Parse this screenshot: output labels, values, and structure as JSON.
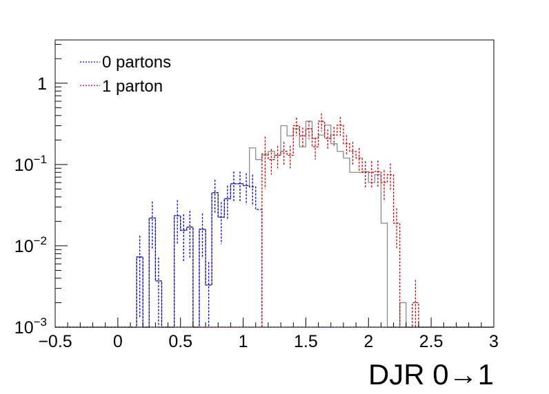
{
  "chart_data": {
    "type": "histogram",
    "xlabel": "DJR 0→1",
    "ylabel": "",
    "log_y": true,
    "xlim": [
      -0.5,
      3.0
    ],
    "ylim": [
      0.001,
      3.4
    ],
    "x_ticks": [
      {
        "value": -0.5,
        "label": "−0.5"
      },
      {
        "value": 0,
        "label": "0"
      },
      {
        "value": 0.5,
        "label": "0.5"
      },
      {
        "value": 1,
        "label": "1"
      },
      {
        "value": 1.5,
        "label": "1.5"
      },
      {
        "value": 2,
        "label": "2"
      },
      {
        "value": 2.5,
        "label": "2.5"
      },
      {
        "value": 3,
        "label": "3"
      }
    ],
    "y_ticks": [
      {
        "value": 0.001,
        "base": "10",
        "exp": "−3"
      },
      {
        "value": 0.01,
        "base": "10",
        "exp": "−2"
      },
      {
        "value": 0.1,
        "base": "10",
        "exp": "−1"
      },
      {
        "value": 1,
        "base": "1",
        "exp": ""
      }
    ],
    "bin_edges": [
      -0.5,
      -0.45,
      -0.4,
      -0.35,
      -0.3,
      -0.25,
      -0.2,
      -0.15,
      -0.1,
      -0.05,
      0.0,
      0.05,
      0.1,
      0.15,
      0.2,
      0.25,
      0.3,
      0.35,
      0.4,
      0.45,
      0.5,
      0.55,
      0.6,
      0.65,
      0.7,
      0.75,
      0.8,
      0.85,
      0.9,
      0.95,
      1.0,
      1.05,
      1.1,
      1.15,
      1.2,
      1.25,
      1.3,
      1.35,
      1.4,
      1.45,
      1.5,
      1.55,
      1.6,
      1.65,
      1.7,
      1.75,
      1.8,
      1.85,
      1.9,
      1.95,
      2.0,
      2.05,
      2.1,
      2.15,
      2.2,
      2.25,
      2.3,
      2.35,
      2.4,
      2.45,
      2.5,
      2.55,
      2.6,
      2.65,
      2.7,
      2.75,
      2.8,
      2.85,
      2.9,
      2.95,
      3.0
    ],
    "series": [
      {
        "name": "0 partons",
        "color": "#0000cc",
        "values": [
          0,
          0,
          0,
          0,
          0,
          0,
          0,
          0,
          0,
          0,
          0,
          0,
          0,
          0.0073,
          0,
          0.022,
          0.0037,
          0,
          0,
          0.0235,
          0.0155,
          0.017,
          0,
          0.016,
          0.0033,
          0.045,
          0.0225,
          0.038,
          0.058,
          0.058,
          0.055,
          0.053,
          0.028,
          0,
          0,
          0,
          0,
          0,
          0,
          0,
          0,
          0,
          0,
          0,
          0,
          0,
          0,
          0,
          0,
          0,
          0,
          0,
          0,
          0,
          0,
          0,
          0,
          0,
          0,
          0,
          0,
          0,
          0,
          0,
          0,
          0,
          0,
          0,
          0,
          0
        ],
        "errors": [
          0,
          0,
          0,
          0,
          0,
          0,
          0,
          0,
          0,
          0,
          0,
          0,
          0,
          0.006,
          0,
          0.013,
          0.0035,
          0,
          0,
          0.013,
          0.009,
          0.01,
          0,
          0.009,
          0.003,
          0.02,
          0.012,
          0.017,
          0.024,
          0.024,
          0.023,
          0.022,
          0,
          0,
          0,
          0,
          0,
          0,
          0,
          0,
          0,
          0,
          0,
          0,
          0,
          0,
          0,
          0,
          0,
          0,
          0,
          0,
          0,
          0,
          0,
          0,
          0,
          0,
          0,
          0,
          0,
          0,
          0,
          0,
          0,
          0,
          0,
          0,
          0,
          0
        ]
      },
      {
        "name": "1 parton",
        "color": "#cc0000",
        "values": [
          0,
          0,
          0,
          0,
          0,
          0,
          0,
          0,
          0,
          0,
          0,
          0,
          0,
          0,
          0,
          0,
          0,
          0,
          0,
          0,
          0,
          0,
          0,
          0,
          0,
          0,
          0,
          0,
          0,
          0,
          0,
          0,
          0,
          0.135,
          0.115,
          0.13,
          0.145,
          0.13,
          0.3,
          0.225,
          0.275,
          0.165,
          0.34,
          0.21,
          0.23,
          0.305,
          0.18,
          0.145,
          0.12,
          0.08,
          0.08,
          0.082,
          0.06,
          0.075,
          0.019,
          0,
          0,
          0.002,
          0,
          0,
          0,
          0,
          0,
          0,
          0,
          0,
          0,
          0,
          0,
          0
        ],
        "errors": [
          0,
          0,
          0,
          0,
          0,
          0,
          0,
          0,
          0,
          0,
          0,
          0,
          0,
          0,
          0,
          0,
          0,
          0,
          0,
          0,
          0,
          0,
          0,
          0,
          0,
          0,
          0,
          0,
          0,
          0,
          0,
          0,
          0,
          0.085,
          0.04,
          0.04,
          0.045,
          0.04,
          0.075,
          0.06,
          0.07,
          0.05,
          0.085,
          0.06,
          0.06,
          0.08,
          0.05,
          0.045,
          0.04,
          0.03,
          0.03,
          0.03,
          0.025,
          0.028,
          0.01,
          0,
          0,
          0.0018,
          0,
          0,
          0,
          0,
          0,
          0,
          0,
          0,
          0,
          0,
          0,
          0
        ]
      },
      {
        "name": "",
        "color": "#888888",
        "values": [
          0,
          0,
          0,
          0,
          0,
          0,
          0,
          0,
          0,
          0,
          0,
          0,
          0,
          0.0073,
          0,
          0.022,
          0.0037,
          0,
          0,
          0.0235,
          0.0155,
          0.017,
          0,
          0.016,
          0.0033,
          0.045,
          0.0225,
          0.038,
          0.058,
          0.058,
          0.055,
          0.16,
          0.115,
          0.13,
          0.145,
          0.13,
          0.3,
          0.225,
          0.275,
          0.165,
          0.34,
          0.21,
          0.23,
          0.305,
          0.18,
          0.145,
          0.12,
          0.08,
          0.08,
          0.082,
          0.06,
          0.075,
          0.019,
          0,
          0,
          0.002,
          0,
          0,
          0,
          0,
          0,
          0,
          0,
          0,
          0,
          0,
          0,
          0,
          0,
          0
        ]
      }
    ],
    "legend": {
      "position": "top-left",
      "entries": [
        {
          "label": "0 partons",
          "color": "#0000cc"
        },
        {
          "label": "1 parton",
          "color": "#cc0000"
        }
      ]
    },
    "grid": false
  }
}
